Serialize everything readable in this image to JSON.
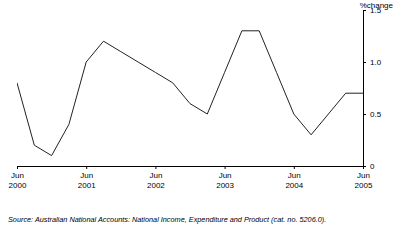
{
  "chart_data": {
    "type": "line",
    "y_label": "%change",
    "source": "Source: Australian National Accounts: National Income, Expenditure and Product (cat. no. 5206.0).",
    "categories": [
      "Jun 2000",
      null,
      null,
      null,
      "Jun 2001",
      null,
      null,
      null,
      "Jun 2002",
      null,
      null,
      null,
      "Jun 2003",
      null,
      null,
      null,
      "Jun 2004",
      null,
      null,
      null,
      "Jun 2005"
    ],
    "values": [
      0.8,
      0.2,
      0.1,
      0.4,
      1.0,
      1.2,
      1.1,
      1.0,
      0.9,
      0.8,
      0.6,
      0.5,
      0.9,
      1.3,
      1.3,
      0.9,
      0.5,
      0.3,
      0.5,
      0.7,
      0.7
    ],
    "color": "#222222",
    "ylim": [
      0,
      1.5
    ],
    "yticks": [
      0,
      0.5,
      {
        "value": 1,
        "label": "1.0"
      },
      1.5
    ],
    "grid": false
  }
}
